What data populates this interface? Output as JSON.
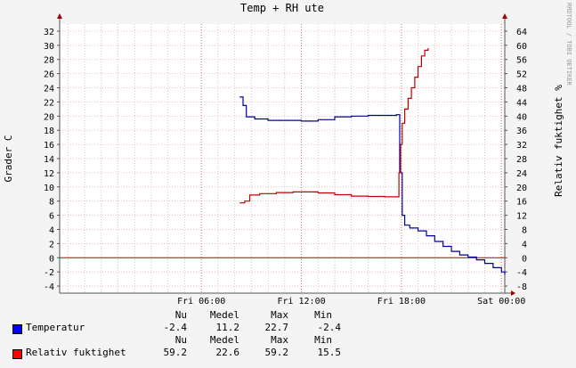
{
  "chart_data": {
    "type": "line",
    "title": "Temp + RH ute",
    "ylabel_left": "Grader C",
    "ylabel_right": "Relativ fuktighet %",
    "watermark": "RRDTOOL / TOBI OETIKER",
    "x_ticks": [
      "Fri 06:00",
      "Fri 12:00",
      "Fri 18:00",
      "Sat 00:00"
    ],
    "xlim_hours": [
      -2.5,
      24.2
    ],
    "ylim_left": [
      -5,
      33
    ],
    "ylim_right": [
      -10,
      66
    ],
    "left_ticks": [
      32,
      30,
      28,
      26,
      24,
      22,
      20,
      18,
      16,
      14,
      12,
      10,
      8,
      6,
      4,
      2,
      0,
      -2,
      -4
    ],
    "right_ticks": [
      64,
      60,
      56,
      52,
      48,
      44,
      40,
      36,
      32,
      28,
      24,
      20,
      16,
      12,
      8,
      4,
      0,
      -4,
      -8
    ],
    "series": [
      {
        "name": "Temperatur",
        "color": "#00009c",
        "axis": "left",
        "points": [
          [
            8.3,
            22.7
          ],
          [
            8.5,
            21.5
          ],
          [
            8.7,
            19.9
          ],
          [
            9.2,
            19.6
          ],
          [
            10,
            19.4
          ],
          [
            11,
            19.4
          ],
          [
            12,
            19.3
          ],
          [
            13,
            19.5
          ],
          [
            14,
            19.9
          ],
          [
            15,
            20.0
          ],
          [
            16,
            20.1
          ],
          [
            17,
            20.1
          ],
          [
            17.7,
            20.2
          ],
          [
            17.9,
            12
          ],
          [
            18.05,
            6
          ],
          [
            18.2,
            4.6
          ],
          [
            18.5,
            4.2
          ],
          [
            19,
            3.8
          ],
          [
            19.5,
            3.1
          ],
          [
            20,
            2.3
          ],
          [
            20.5,
            1.6
          ],
          [
            21,
            0.9
          ],
          [
            21.5,
            0.4
          ],
          [
            22,
            0.1
          ],
          [
            22.5,
            -0.3
          ],
          [
            23,
            -0.8
          ],
          [
            23.5,
            -1.4
          ],
          [
            24,
            -2.0
          ],
          [
            24.2,
            -2.4
          ]
        ]
      },
      {
        "name": "Relativ fuktighet",
        "color": "#c00000",
        "axis": "right",
        "points": [
          [
            8.3,
            15.5
          ],
          [
            8.6,
            16.0
          ],
          [
            8.9,
            17.7
          ],
          [
            9.5,
            18.1
          ],
          [
            10.5,
            18.4
          ],
          [
            11.5,
            18.6
          ],
          [
            12.2,
            18.6
          ],
          [
            13,
            18.3
          ],
          [
            14,
            17.8
          ],
          [
            15,
            17.4
          ],
          [
            16,
            17.3
          ],
          [
            17,
            17.2
          ],
          [
            17.7,
            17.2
          ],
          [
            17.85,
            24
          ],
          [
            17.95,
            32
          ],
          [
            18.05,
            38
          ],
          [
            18.2,
            42
          ],
          [
            18.4,
            45
          ],
          [
            18.6,
            48
          ],
          [
            18.8,
            51
          ],
          [
            19.0,
            54
          ],
          [
            19.2,
            57
          ],
          [
            19.4,
            58.6
          ],
          [
            19.6,
            59.2
          ]
        ]
      }
    ]
  },
  "legend": {
    "headers": [
      "Nu",
      "Medel",
      "Max",
      "Min"
    ],
    "rows": [
      {
        "name": "Temperatur",
        "color": "#0000ff",
        "values": [
          "-2.4",
          "11.2",
          "22.7",
          "-2.4"
        ]
      },
      {
        "name": "Relativ fuktighet",
        "color": "#ff0000",
        "values": [
          "59.2",
          "22.6",
          "59.2",
          "15.5"
        ]
      }
    ]
  }
}
